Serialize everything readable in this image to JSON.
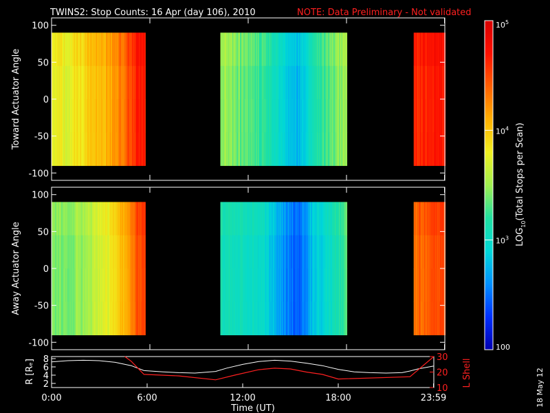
{
  "colors": {
    "background": "#000000",
    "text": "#ffffff",
    "note": "#ff2020",
    "r_line": "#ffffff",
    "lshell_line": "#ff2020"
  },
  "chart_data": [
    {
      "type": "heatmap",
      "title": "TWINS2: Stop Counts: 16 Apr (day 106), 2010",
      "note": "NOTE: Data Preliminary - Not validated",
      "panel": "top",
      "ylabel": "Toward Actuator Angle",
      "ylim": [
        -110,
        110
      ],
      "y_ticks": [
        "100",
        "50",
        "0",
        "-50",
        "-100"
      ],
      "y_tick_values": [
        100,
        50,
        0,
        -50,
        -100
      ],
      "data_ylim": [
        -90,
        90
      ],
      "data_segments_hours": [
        [
          0.0,
          5.7
        ],
        [
          10.3,
          18.0
        ],
        [
          22.1,
          24.0
        ]
      ],
      "log_level_profile": {
        "hours": [
          0.0,
          1.0,
          2.5,
          3.5,
          4.5,
          5.2,
          5.6,
          10.3,
          11.5,
          13.0,
          14.2,
          15.0,
          16.0,
          17.0,
          18.0,
          22.1,
          22.5,
          24.0
        ],
        "log10": [
          3.8,
          3.75,
          4.0,
          4.1,
          4.35,
          4.65,
          4.7,
          3.5,
          3.35,
          3.2,
          2.9,
          2.75,
          3.1,
          3.3,
          3.55,
          4.6,
          4.65,
          4.7
        ]
      }
    },
    {
      "type": "heatmap",
      "panel": "bottom",
      "ylabel": "Away Actuator Angle",
      "ylim": [
        -110,
        110
      ],
      "y_ticks": [
        "100",
        "50",
        "0",
        "-50",
        "-100"
      ],
      "y_tick_values": [
        100,
        50,
        0,
        -50,
        -100
      ],
      "data_ylim": [
        -90,
        90
      ],
      "data_segments_hours": [
        [
          0.0,
          5.7
        ],
        [
          10.3,
          18.0
        ],
        [
          22.1,
          24.0
        ]
      ],
      "log_level_profile": {
        "hours": [
          0.0,
          1.0,
          2.5,
          3.5,
          4.5,
          5.2,
          5.6,
          10.3,
          11.5,
          13.0,
          14.2,
          15.0,
          16.0,
          17.0,
          18.0,
          22.1,
          22.5,
          24.0
        ],
        "log10": [
          3.45,
          3.35,
          3.6,
          3.8,
          4.1,
          4.45,
          4.5,
          3.1,
          3.05,
          2.95,
          2.6,
          2.4,
          2.8,
          3.0,
          3.25,
          4.3,
          4.4,
          4.5
        ]
      }
    },
    {
      "type": "line",
      "panel": "orbit",
      "ylabel": "R [Rₑ]",
      "ylabel_right": "L Shell",
      "ylim": [
        1,
        8.5
      ],
      "y_ticks": [
        "8",
        "6",
        "4",
        "2"
      ],
      "y_tick_values": [
        8,
        6,
        4,
        2
      ],
      "ylim_right": [
        10,
        30
      ],
      "y_ticks_right": [
        "30",
        "20",
        "10"
      ],
      "y_tick_values_right": [
        30,
        20,
        10
      ],
      "x_hours_max": 24,
      "x_ticks": [
        "0:00",
        "6:00",
        "12:00",
        "18:00",
        "23:59"
      ],
      "x_tick_values": [
        0,
        6,
        12,
        18,
        23.98
      ],
      "xlabel": "Time (UT)",
      "series": [
        {
          "name": "R",
          "color": "#ffffff",
          "x": [
            0,
            1,
            2,
            3,
            4,
            5,
            5.8,
            7,
            8,
            9,
            10.3,
            11,
            12,
            13,
            14,
            15,
            16,
            17,
            18,
            19,
            20,
            21,
            22,
            22.5,
            23,
            24
          ],
          "y": [
            7.2,
            7.5,
            7.6,
            7.5,
            7.1,
            6.3,
            5.1,
            4.8,
            4.6,
            4.5,
            4.9,
            5.7,
            6.6,
            7.3,
            7.6,
            7.4,
            6.9,
            6.3,
            5.4,
            4.8,
            4.6,
            4.5,
            4.6,
            5.0,
            5.5,
            6.2
          ]
        },
        {
          "name": "L Shell",
          "color": "#ff2020",
          "axis": "right",
          "x": [
            4.6,
            5.0,
            5.8,
            8.0,
            10.3,
            11.5,
            13.0,
            14.0,
            15.0,
            16.0,
            17.0,
            18.0,
            22.5,
            24.0
          ],
          "y": [
            30,
            27,
            18.5,
            17.5,
            15,
            18,
            21.5,
            22.5,
            22,
            20,
            18.5,
            15.5,
            17,
            30
          ]
        }
      ]
    },
    {
      "type": "colorbar",
      "label_base": "LOG",
      "label_sub": "10",
      "label_rest": "(Total Stops per Scan)",
      "range_log10": [
        2,
        5
      ],
      "ticks": [
        {
          "log10": 5,
          "base": "10",
          "exp": "5"
        },
        {
          "log10": 4,
          "base": "10",
          "exp": "4"
        },
        {
          "log10": 3,
          "base": "10",
          "exp": "3"
        },
        {
          "log10": 2,
          "text": "100"
        }
      ],
      "stops": [
        "#0000b0",
        "#0030ff",
        "#0090ff",
        "#00d8d8",
        "#20e0a0",
        "#a0f050",
        "#f0f020",
        "#ffb000",
        "#ff6000",
        "#ff1000",
        "#d80000"
      ]
    }
  ],
  "footer_date": "18 May 12"
}
